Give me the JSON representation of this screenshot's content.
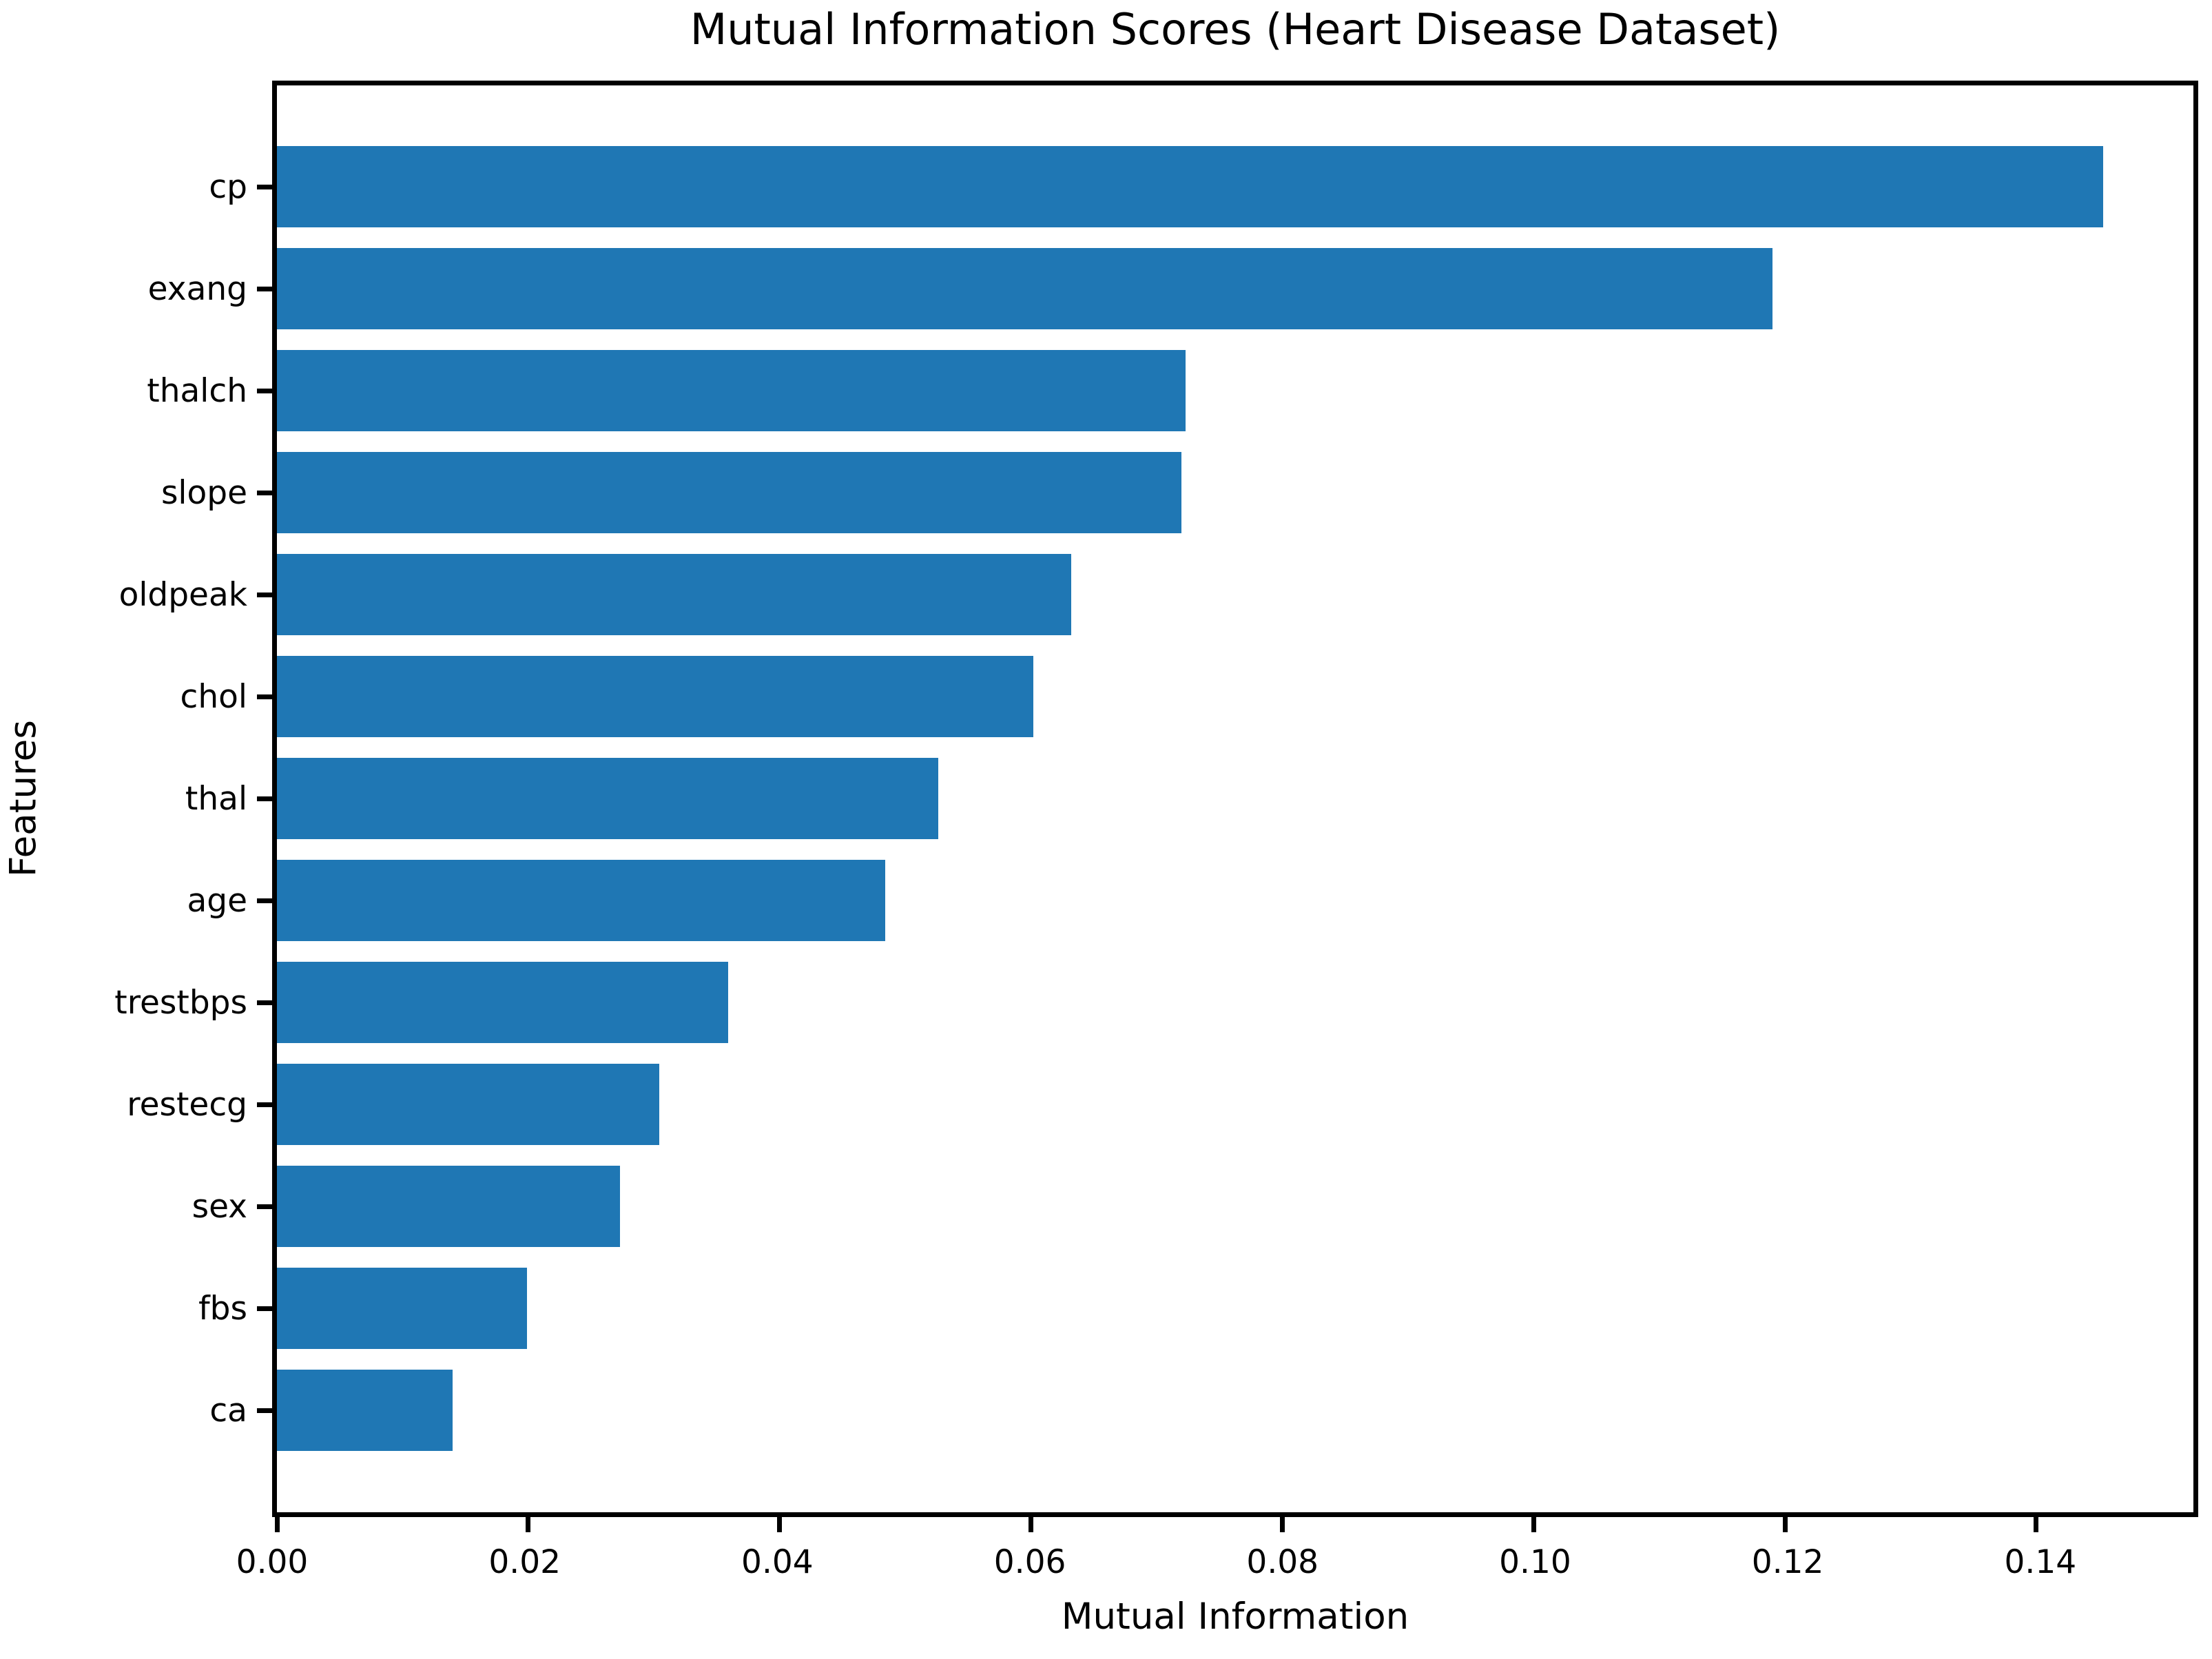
{
  "chart_data": {
    "type": "bar",
    "orientation": "horizontal",
    "title": "Mutual Information Scores (Heart Disease Dataset)",
    "xlabel": "Mutual Information",
    "ylabel": "Features",
    "categories": [
      "cp",
      "exang",
      "thalch",
      "slope",
      "oldpeak",
      "chol",
      "thal",
      "age",
      "trestbps",
      "restecg",
      "sex",
      "fbs",
      "ca"
    ],
    "values": [
      0.1453,
      0.119,
      0.0723,
      0.072,
      0.0632,
      0.0602,
      0.0526,
      0.0484,
      0.0359,
      0.0304,
      0.0273,
      0.0199,
      0.014
    ],
    "xticks": [
      {
        "label": "0.00",
        "value": 0.0
      },
      {
        "label": "0.02",
        "value": 0.02
      },
      {
        "label": "0.04",
        "value": 0.04
      },
      {
        "label": "0.06",
        "value": 0.06
      },
      {
        "label": "0.08",
        "value": 0.08
      },
      {
        "label": "0.10",
        "value": 0.1
      },
      {
        "label": "0.12",
        "value": 0.12
      },
      {
        "label": "0.14",
        "value": 0.14
      }
    ],
    "xlim": [
      0,
      0.1525
    ],
    "grid": false,
    "legend": "none",
    "bar_color": "#1f77b4",
    "background_color": "#ffffff",
    "axis_color": "#000000"
  }
}
